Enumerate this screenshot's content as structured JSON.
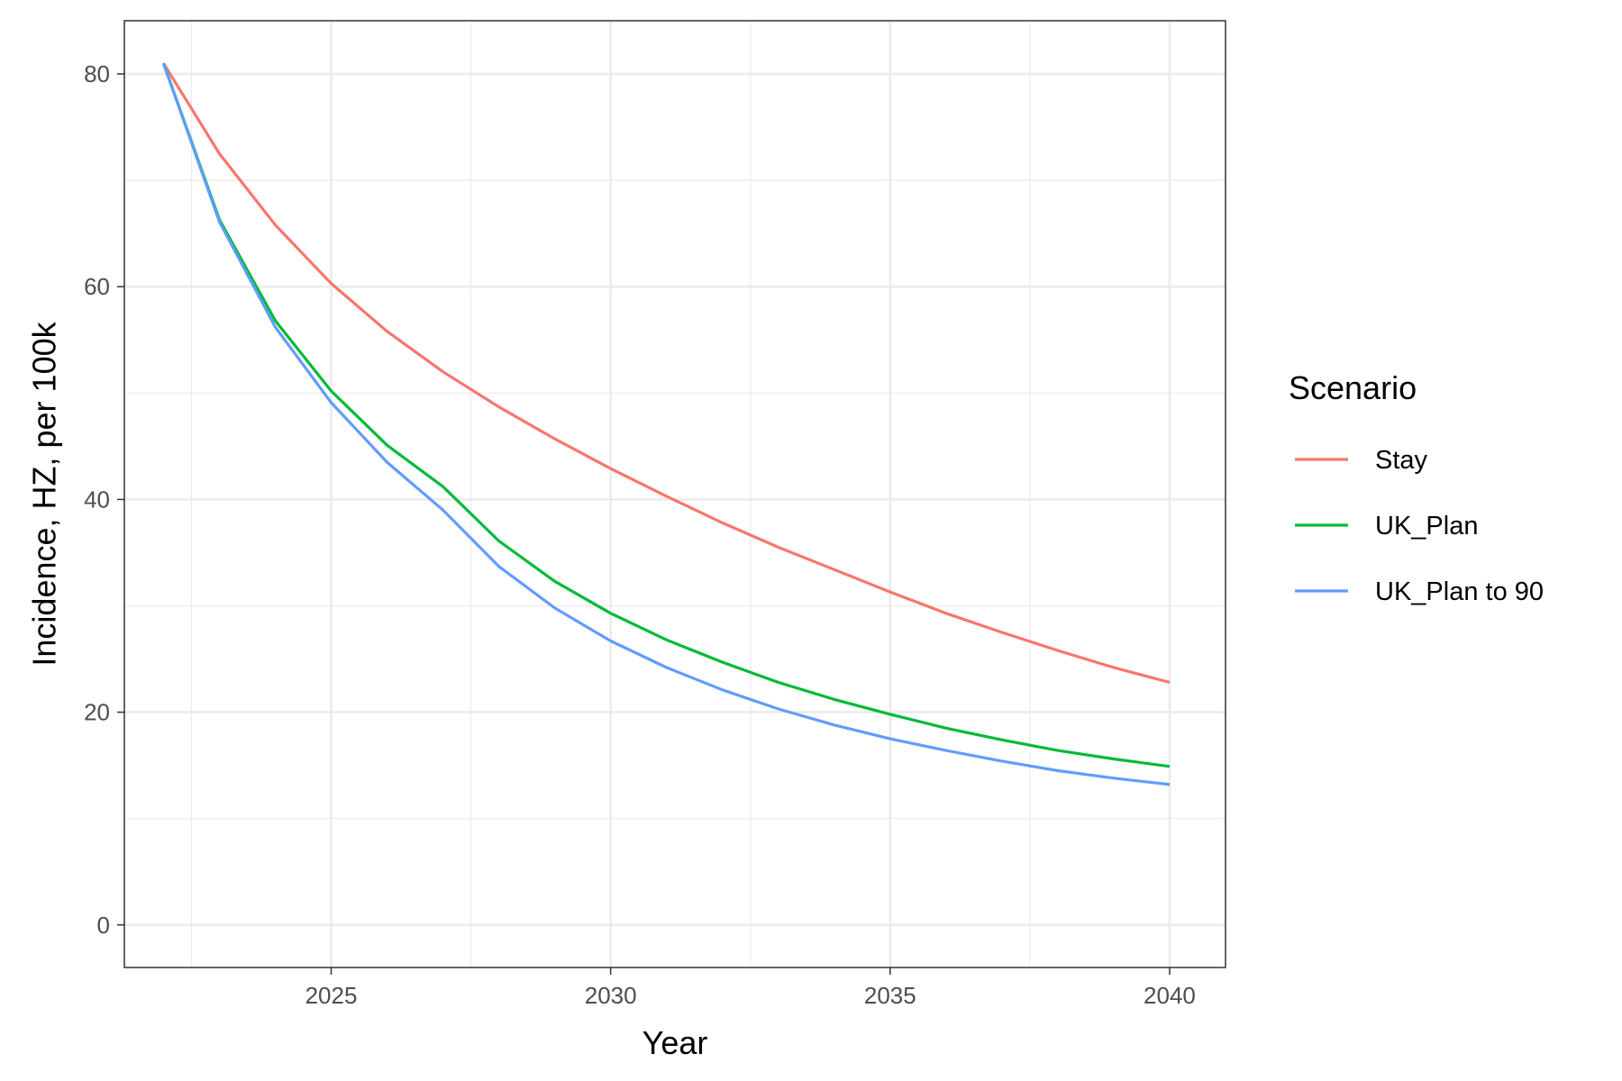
{
  "chart_data": {
    "type": "line",
    "xlabel": "Year",
    "ylabel": "Incidence, HZ, per 100k",
    "xlim": [
      2021.3,
      2041.0
    ],
    "ylim": [
      -4,
      85
    ],
    "x_ticks": [
      2025,
      2030,
      2035,
      2040
    ],
    "y_ticks": [
      0,
      20,
      40,
      60,
      80
    ],
    "x_minor": [
      2022.5,
      2027.5,
      2032.5,
      2037.5
    ],
    "y_minor": [
      10,
      30,
      50,
      70
    ],
    "grid": true,
    "legend": {
      "title": "Scenario",
      "position": "right"
    },
    "x": [
      2022,
      2023,
      2024,
      2025,
      2026,
      2027,
      2028,
      2029,
      2030,
      2031,
      2032,
      2033,
      2034,
      2035,
      2036,
      2037,
      2038,
      2039,
      2040
    ],
    "series": [
      {
        "name": "Stay",
        "color": "#F8766D",
        "values": [
          81.0,
          72.5,
          65.8,
          60.3,
          55.8,
          52.0,
          48.7,
          45.7,
          42.9,
          40.3,
          37.8,
          35.5,
          33.4,
          31.3,
          29.3,
          27.5,
          25.8,
          24.2,
          22.8
        ]
      },
      {
        "name": "UK_Plan",
        "color": "#00BA38",
        "values": [
          81.0,
          66.3,
          56.8,
          50.2,
          45.1,
          41.2,
          36.1,
          32.3,
          29.3,
          26.8,
          24.7,
          22.8,
          21.2,
          19.8,
          18.5,
          17.4,
          16.4,
          15.6,
          14.9
        ]
      },
      {
        "name": "UK_Plan to 90",
        "color": "#619CFF",
        "values": [
          81.0,
          66.1,
          56.2,
          49.1,
          43.5,
          39.0,
          33.7,
          29.8,
          26.7,
          24.2,
          22.1,
          20.3,
          18.8,
          17.5,
          16.4,
          15.4,
          14.5,
          13.8,
          13.2
        ]
      }
    ]
  }
}
